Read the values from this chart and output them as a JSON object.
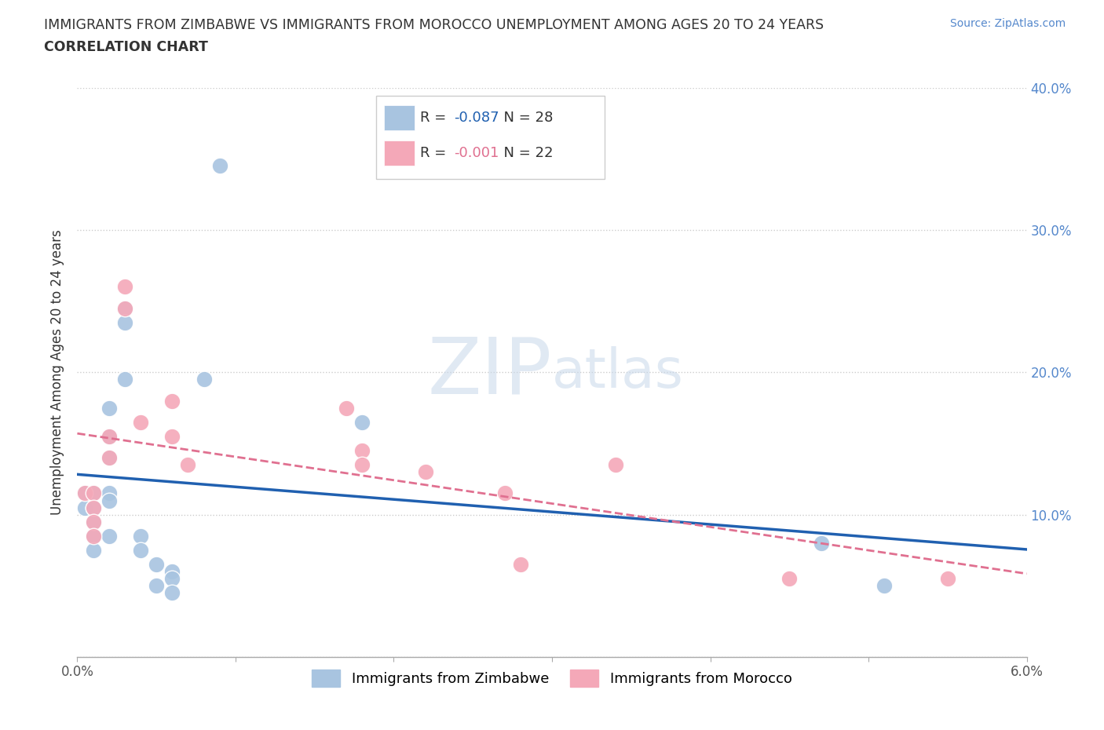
{
  "title_line1": "IMMIGRANTS FROM ZIMBABWE VS IMMIGRANTS FROM MOROCCO UNEMPLOYMENT AMONG AGES 20 TO 24 YEARS",
  "title_line2": "CORRELATION CHART",
  "source": "Source: ZipAtlas.com",
  "ylabel": "Unemployment Among Ages 20 to 24 years",
  "xlim": [
    0.0,
    0.06
  ],
  "ylim": [
    0.0,
    0.4
  ],
  "xticks": [
    0.0,
    0.01,
    0.02,
    0.03,
    0.04,
    0.05,
    0.06
  ],
  "xtick_labels_outer": [
    "0.0%",
    "",
    "",
    "",
    "",
    "",
    "6.0%"
  ],
  "yticks": [
    0.0,
    0.1,
    0.2,
    0.3,
    0.4
  ],
  "ytick_labels_right": [
    "",
    "10.0%",
    "20.0%",
    "30.0%",
    "40.0%"
  ],
  "zimbabwe_R": -0.087,
  "zimbabwe_N": 28,
  "morocco_R": -0.001,
  "morocco_N": 22,
  "zimbabwe_color": "#a8c4e0",
  "morocco_color": "#f4a8b8",
  "zimbabwe_line_color": "#2060b0",
  "morocco_line_color": "#e07090",
  "watermark_color": "#c8d8ea",
  "legend_label_1": "Immigrants from Zimbabwe",
  "legend_label_2": "Immigrants from Morocco",
  "zimbabwe_x": [
    0.0005,
    0.0005,
    0.001,
    0.001,
    0.001,
    0.001,
    0.001,
    0.002,
    0.002,
    0.002,
    0.002,
    0.002,
    0.002,
    0.003,
    0.003,
    0.003,
    0.004,
    0.004,
    0.005,
    0.005,
    0.006,
    0.006,
    0.006,
    0.008,
    0.009,
    0.018,
    0.047,
    0.051
  ],
  "zimbabwe_y": [
    0.115,
    0.105,
    0.115,
    0.105,
    0.095,
    0.085,
    0.075,
    0.175,
    0.155,
    0.14,
    0.115,
    0.11,
    0.085,
    0.245,
    0.235,
    0.195,
    0.085,
    0.075,
    0.065,
    0.05,
    0.06,
    0.055,
    0.045,
    0.195,
    0.345,
    0.165,
    0.08,
    0.05
  ],
  "morocco_x": [
    0.0005,
    0.001,
    0.001,
    0.001,
    0.001,
    0.002,
    0.002,
    0.003,
    0.003,
    0.004,
    0.006,
    0.006,
    0.007,
    0.017,
    0.018,
    0.018,
    0.022,
    0.027,
    0.028,
    0.034,
    0.045,
    0.055
  ],
  "morocco_y": [
    0.115,
    0.115,
    0.105,
    0.095,
    0.085,
    0.155,
    0.14,
    0.26,
    0.245,
    0.165,
    0.18,
    0.155,
    0.135,
    0.175,
    0.145,
    0.135,
    0.13,
    0.115,
    0.065,
    0.135,
    0.055,
    0.055
  ]
}
